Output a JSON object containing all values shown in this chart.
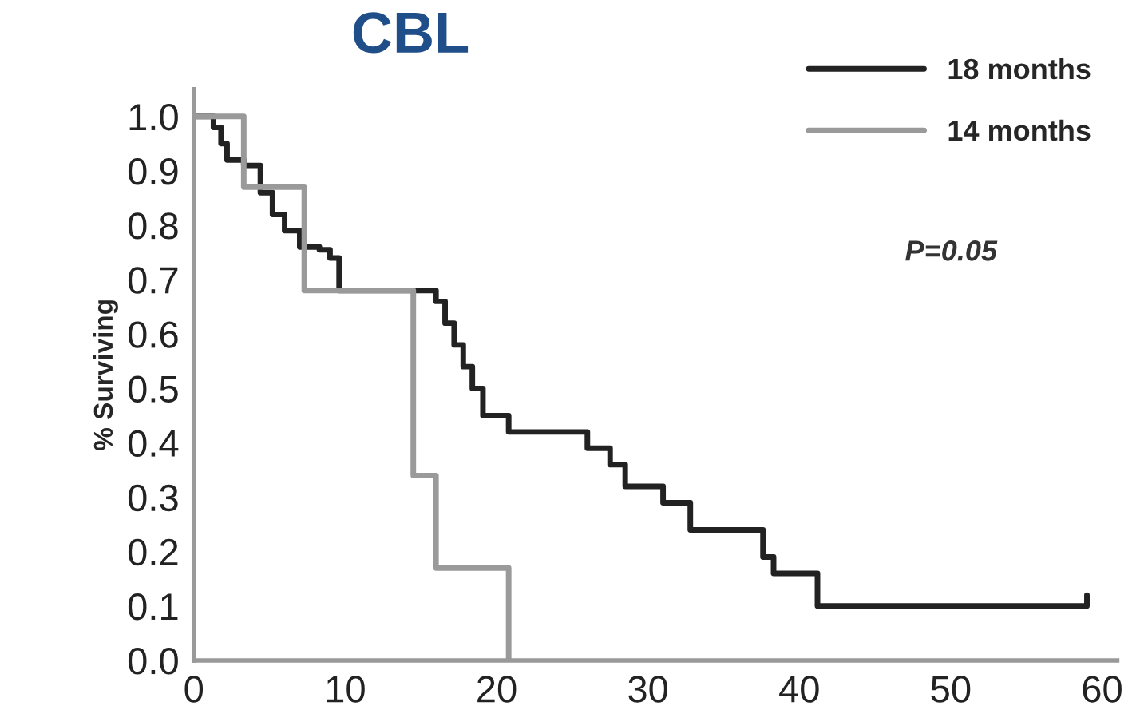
{
  "chart_data": {
    "type": "step",
    "title": "CBL",
    "ylabel": "% Surviving",
    "xlim": [
      0,
      61
    ],
    "xticks": [
      0,
      10,
      20,
      30,
      40,
      50,
      60
    ],
    "ylim": [
      0,
      1.05
    ],
    "yticks": [
      {
        "value": 0,
        "label": "0.0"
      },
      0.1,
      0.2,
      0.3,
      0.4,
      0.5,
      0.6,
      0.7,
      0.8,
      0.9,
      {
        "value": 1,
        "label": "1.0"
      }
    ],
    "grid": false,
    "legend": "top right",
    "line_style": "solid",
    "annotations": [
      "P=0.05"
    ],
    "series": [
      {
        "name": "18 months",
        "color": "#222222",
        "x": [
          0,
          1.3,
          1.8,
          2.2,
          3.3,
          4.4,
          5.2,
          6,
          7,
          8.3,
          9,
          9.6,
          16,
          16.6,
          17.2,
          17.8,
          18.4,
          19.1,
          20.8,
          26,
          27.5,
          28.5,
          31,
          32.8,
          37.6,
          38.3,
          41.2,
          59
        ],
        "values": [
          1.0,
          0.98,
          0.95,
          0.92,
          0.91,
          0.86,
          0.82,
          0.79,
          0.76,
          0.755,
          0.74,
          0.68,
          0.66,
          0.62,
          0.58,
          0.54,
          0.5,
          0.45,
          0.42,
          0.39,
          0.36,
          0.32,
          0.29,
          0.24,
          0.19,
          0.16,
          0.1,
          0.12
        ]
      },
      {
        "name": "14 months",
        "color": "#9a9a9a",
        "x": [
          0,
          3.3,
          7.3,
          14.5,
          16,
          20.8
        ],
        "values": [
          1.0,
          0.87,
          0.68,
          0.34,
          0.17,
          0.0
        ]
      }
    ]
  }
}
